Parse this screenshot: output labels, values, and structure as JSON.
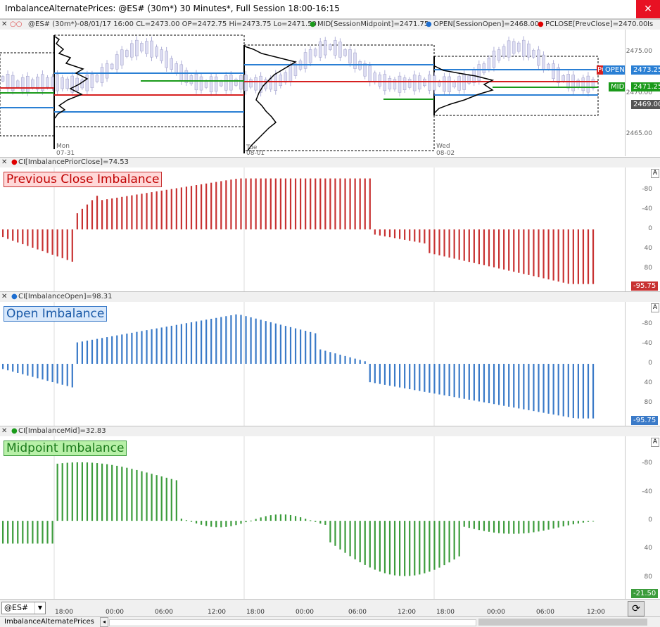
{
  "window": {
    "title": "ImbalanceAlternatePrices: @ES# (30m*) 30 Minutes*, Full Session 18:00-16:15",
    "close_glyph": "✕"
  },
  "price_panel": {
    "header": "@ES# (30m*)-08/01/17 16:00 CL=2473.00 OP=2472.75 Hi=2473.75 Lo=2471.50",
    "study_mid": "MID[SessionMidpoint]=2471.75",
    "study_open": "OPEN[SessionOpen]=2468.00",
    "study_pclose": "PCLOSE[PrevClose]=2470.00",
    "study_more": "Is",
    "date_labels": [
      {
        "d": "Mon",
        "n": "07-31"
      },
      {
        "d": "Tue",
        "n": "08-01"
      },
      {
        "d": "Wed",
        "n": "08-02"
      }
    ],
    "axis_ticks": [
      "2475.00",
      "2470.00",
      "2465.00"
    ],
    "values": {
      "open": "2473.25",
      "open_tag": "OPEN",
      "pclose_tag": "PC",
      "mid": "2471.25",
      "mid_tag": "MID",
      "last": "2469.00"
    }
  },
  "panels": [
    {
      "header": "CI[ImbalancePriorClose]=74.53",
      "label": "Previous Close Imbalance",
      "value": "-95.75",
      "color": "#c83232",
      "dot": "#e00000",
      "label_bg": "#ffd8d8",
      "label_border": "#c83232",
      "label_color": "#c00000",
      "ticks": [
        "80",
        "40",
        "0",
        "-40",
        "-80"
      ]
    },
    {
      "header": "CI[ImbalanceOpen]=98.31",
      "label": "Open Imbalance",
      "value": "-95.75",
      "color": "#3a7ac8",
      "dot": "#1e6ed0",
      "label_bg": "#d8e8fb",
      "label_border": "#3a7ac8",
      "label_color": "#1a5aa8",
      "ticks": [
        "80",
        "40",
        "0",
        "-40",
        "-80"
      ]
    },
    {
      "header": "CI[ImbalanceMid]=32.83",
      "label": "Midpoint Imbalance",
      "value": "-21.50",
      "color": "#3c9c3c",
      "dot": "#1a9a1a",
      "label_bg": "#b8f0a8",
      "label_border": "#3c9c3c",
      "label_color": "#1a7a1a",
      "ticks": [
        "80",
        "40",
        "0",
        "-40",
        "-80"
      ]
    }
  ],
  "time_axis": [
    "18:00",
    "00:00",
    "06:00",
    "12:00",
    "18:00",
    "00:00",
    "06:00",
    "12:00",
    "18:00",
    "00:00",
    "06:00",
    "12:00"
  ],
  "bottom": {
    "symbol": "@ES#",
    "dropdown": "▼",
    "refresh": "⟳",
    "tab": "ImbalanceAlternatePrices",
    "scroll_left": "◂"
  },
  "icons": {
    "close": "close-icon",
    "dropdown": "chevron-down-icon",
    "refresh": "refresh-icon",
    "axis_a": "A"
  }
}
